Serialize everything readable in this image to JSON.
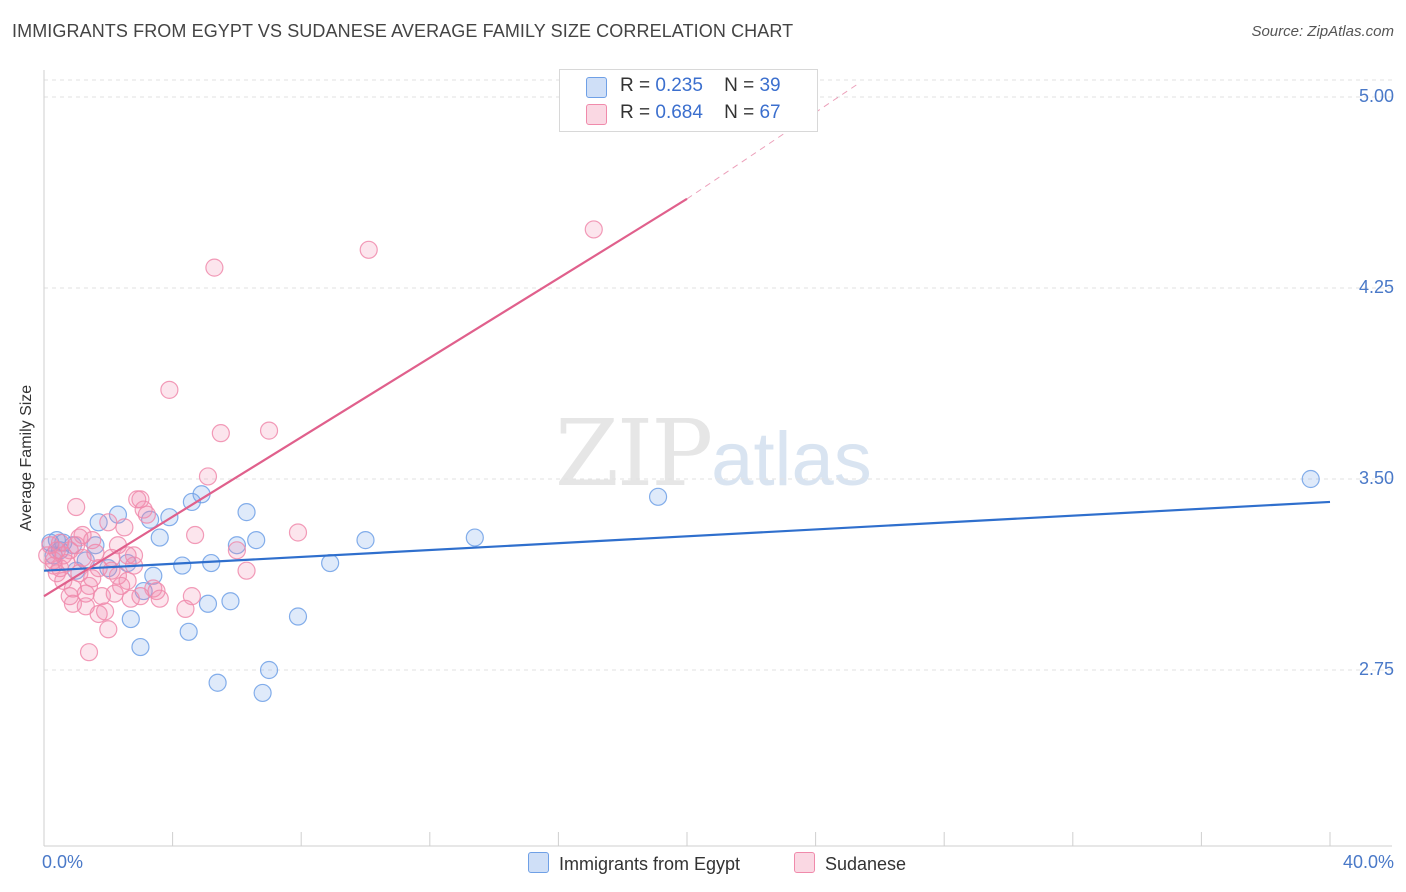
{
  "title": "IMMIGRANTS FROM EGYPT VS SUDANESE AVERAGE FAMILY SIZE CORRELATION CHART",
  "source": "Source: ZipAtlas.com",
  "watermark": {
    "zip": "ZIP",
    "atlas": "atlas"
  },
  "chart_data": {
    "type": "scatter",
    "title": "IMMIGRANTS FROM EGYPT VS SUDANESE AVERAGE FAMILY SIZE CORRELATION CHART",
    "xlabel": "",
    "ylabel": "Average Family Size",
    "xlim": [
      0,
      40
    ],
    "ylim": [
      2.0,
      5.1
    ],
    "x_tick_labels": {
      "min": "0.0%",
      "max": "40.0%"
    },
    "y_ticks": [
      {
        "value": 5.0,
        "label": "5.00"
      },
      {
        "value": 4.25,
        "label": "4.25"
      },
      {
        "value": 3.5,
        "label": "3.50"
      },
      {
        "value": 2.75,
        "label": "2.75"
      }
    ],
    "grid": true,
    "legend_position": "top-center",
    "series": [
      {
        "name": "Immigrants from Egypt",
        "color": "#6fa0e6",
        "line_color": "#2f6fcd",
        "r_label": "R =",
        "r_value": "0.235",
        "n_label": "N =",
        "n_value": "39",
        "trend": {
          "x": [
            0,
            40
          ],
          "y": [
            3.14,
            3.41
          ]
        },
        "points": [
          {
            "x": 0.2,
            "y": 3.25
          },
          {
            "x": 0.4,
            "y": 3.26
          },
          {
            "x": 0.5,
            "y": 3.22
          },
          {
            "x": 0.6,
            "y": 3.25
          },
          {
            "x": 0.9,
            "y": 3.24
          },
          {
            "x": 1.0,
            "y": 3.14
          },
          {
            "x": 1.6,
            "y": 3.24
          },
          {
            "x": 1.7,
            "y": 3.33
          },
          {
            "x": 2.0,
            "y": 3.15
          },
          {
            "x": 2.3,
            "y": 3.36
          },
          {
            "x": 2.6,
            "y": 3.17
          },
          {
            "x": 2.7,
            "y": 2.95
          },
          {
            "x": 3.0,
            "y": 2.84
          },
          {
            "x": 3.1,
            "y": 3.06
          },
          {
            "x": 3.3,
            "y": 3.34
          },
          {
            "x": 3.4,
            "y": 3.12
          },
          {
            "x": 3.6,
            "y": 3.27
          },
          {
            "x": 3.9,
            "y": 3.35
          },
          {
            "x": 4.3,
            "y": 3.16
          },
          {
            "x": 4.5,
            "y": 2.9
          },
          {
            "x": 4.6,
            "y": 3.41
          },
          {
            "x": 4.9,
            "y": 3.44
          },
          {
            "x": 5.1,
            "y": 3.01
          },
          {
            "x": 5.2,
            "y": 3.17
          },
          {
            "x": 5.4,
            "y": 2.7
          },
          {
            "x": 5.8,
            "y": 3.02
          },
          {
            "x": 6.0,
            "y": 3.24
          },
          {
            "x": 6.3,
            "y": 3.37
          },
          {
            "x": 6.6,
            "y": 3.26
          },
          {
            "x": 6.8,
            "y": 2.66
          },
          {
            "x": 7.0,
            "y": 2.75
          },
          {
            "x": 7.9,
            "y": 2.96
          },
          {
            "x": 8.9,
            "y": 3.17
          },
          {
            "x": 10.0,
            "y": 3.26
          },
          {
            "x": 13.4,
            "y": 3.27
          },
          {
            "x": 19.1,
            "y": 3.43
          },
          {
            "x": 39.4,
            "y": 3.5
          },
          {
            "x": 0.3,
            "y": 3.2
          },
          {
            "x": 1.3,
            "y": 3.18
          }
        ]
      },
      {
        "name": "Sudanese",
        "color": "#f08aab",
        "line_color": "#e0608c",
        "r_label": "R =",
        "r_value": "0.684",
        "n_label": "N =",
        "n_value": "67",
        "trend": {
          "x": [
            0,
            20
          ],
          "y": [
            3.04,
            4.6
          ]
        },
        "trend_dashed": {
          "x": [
            20,
            25.3
          ],
          "y": [
            4.6,
            5.05
          ]
        },
        "points": [
          {
            "x": 0.1,
            "y": 3.2
          },
          {
            "x": 0.2,
            "y": 3.24
          },
          {
            "x": 0.3,
            "y": 3.16
          },
          {
            "x": 0.3,
            "y": 3.18
          },
          {
            "x": 0.4,
            "y": 3.22
          },
          {
            "x": 0.5,
            "y": 3.25
          },
          {
            "x": 0.5,
            "y": 3.15
          },
          {
            "x": 0.6,
            "y": 3.2
          },
          {
            "x": 0.7,
            "y": 3.17
          },
          {
            "x": 0.8,
            "y": 3.22
          },
          {
            "x": 0.8,
            "y": 3.04
          },
          {
            "x": 0.9,
            "y": 3.01
          },
          {
            "x": 1.0,
            "y": 3.39
          },
          {
            "x": 1.1,
            "y": 3.27
          },
          {
            "x": 1.1,
            "y": 3.13
          },
          {
            "x": 1.2,
            "y": 3.28
          },
          {
            "x": 1.3,
            "y": 3.05
          },
          {
            "x": 1.3,
            "y": 3.0
          },
          {
            "x": 1.4,
            "y": 3.08
          },
          {
            "x": 1.4,
            "y": 2.82
          },
          {
            "x": 1.5,
            "y": 3.11
          },
          {
            "x": 1.6,
            "y": 3.21
          },
          {
            "x": 1.7,
            "y": 3.15
          },
          {
            "x": 1.7,
            "y": 2.97
          },
          {
            "x": 1.8,
            "y": 3.04
          },
          {
            "x": 1.9,
            "y": 2.98
          },
          {
            "x": 2.0,
            "y": 2.91
          },
          {
            "x": 2.1,
            "y": 3.19
          },
          {
            "x": 2.2,
            "y": 3.05
          },
          {
            "x": 2.3,
            "y": 3.12
          },
          {
            "x": 2.3,
            "y": 3.24
          },
          {
            "x": 2.4,
            "y": 3.08
          },
          {
            "x": 2.5,
            "y": 3.31
          },
          {
            "x": 2.6,
            "y": 3.2
          },
          {
            "x": 2.7,
            "y": 3.03
          },
          {
            "x": 2.8,
            "y": 3.2
          },
          {
            "x": 2.8,
            "y": 3.16
          },
          {
            "x": 2.9,
            "y": 3.42
          },
          {
            "x": 3.0,
            "y": 3.42
          },
          {
            "x": 3.0,
            "y": 3.04
          },
          {
            "x": 3.1,
            "y": 3.38
          },
          {
            "x": 3.2,
            "y": 3.36
          },
          {
            "x": 3.5,
            "y": 3.06
          },
          {
            "x": 3.6,
            "y": 3.03
          },
          {
            "x": 3.9,
            "y": 3.85
          },
          {
            "x": 4.4,
            "y": 2.99
          },
          {
            "x": 4.6,
            "y": 3.04
          },
          {
            "x": 4.7,
            "y": 3.28
          },
          {
            "x": 5.1,
            "y": 3.51
          },
          {
            "x": 5.3,
            "y": 4.33
          },
          {
            "x": 5.5,
            "y": 3.68
          },
          {
            "x": 6.0,
            "y": 3.22
          },
          {
            "x": 6.3,
            "y": 3.14
          },
          {
            "x": 7.0,
            "y": 3.69
          },
          {
            "x": 7.9,
            "y": 3.29
          },
          {
            "x": 10.1,
            "y": 4.4
          },
          {
            "x": 17.1,
            "y": 4.48
          },
          {
            "x": 0.6,
            "y": 3.1
          },
          {
            "x": 1.0,
            "y": 3.24
          },
          {
            "x": 2.0,
            "y": 3.33
          },
          {
            "x": 0.4,
            "y": 3.13
          },
          {
            "x": 1.5,
            "y": 3.26
          },
          {
            "x": 2.6,
            "y": 3.1
          },
          {
            "x": 3.4,
            "y": 3.07
          },
          {
            "x": 1.2,
            "y": 3.19
          },
          {
            "x": 0.9,
            "y": 3.07
          },
          {
            "x": 2.1,
            "y": 3.14
          }
        ]
      }
    ]
  }
}
